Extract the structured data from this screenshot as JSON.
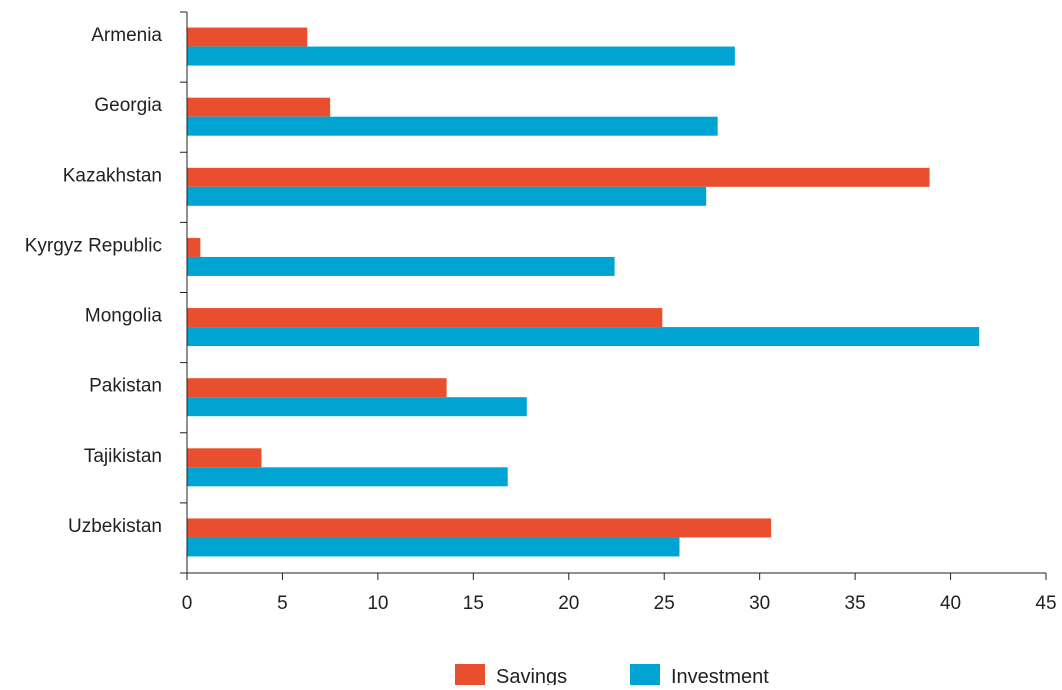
{
  "chart_data": {
    "type": "bar",
    "orientation": "horizontal",
    "categories": [
      "Armenia",
      "Georgia",
      "Kazakhstan",
      "Kyrgyz Republic",
      "Mongolia",
      "Pakistan",
      "Tajikistan",
      "Uzbekistan"
    ],
    "series": [
      {
        "name": "Savings",
        "color": "#e94e2f",
        "values": [
          6.3,
          7.5,
          38.9,
          0.7,
          24.9,
          13.6,
          3.9,
          30.6
        ]
      },
      {
        "name": "Investment",
        "color": "#00a4d3",
        "values": [
          28.7,
          27.8,
          27.2,
          22.4,
          41.5,
          17.8,
          16.8,
          25.8
        ]
      }
    ],
    "xlim": [
      0,
      45
    ],
    "xticks": [
      "0",
      "5",
      "10",
      "15",
      "20",
      "25",
      "30",
      "35",
      "40",
      "45"
    ],
    "legend_position": "bottom-center",
    "grid": false,
    "title": "",
    "xlabel": "",
    "ylabel": ""
  }
}
